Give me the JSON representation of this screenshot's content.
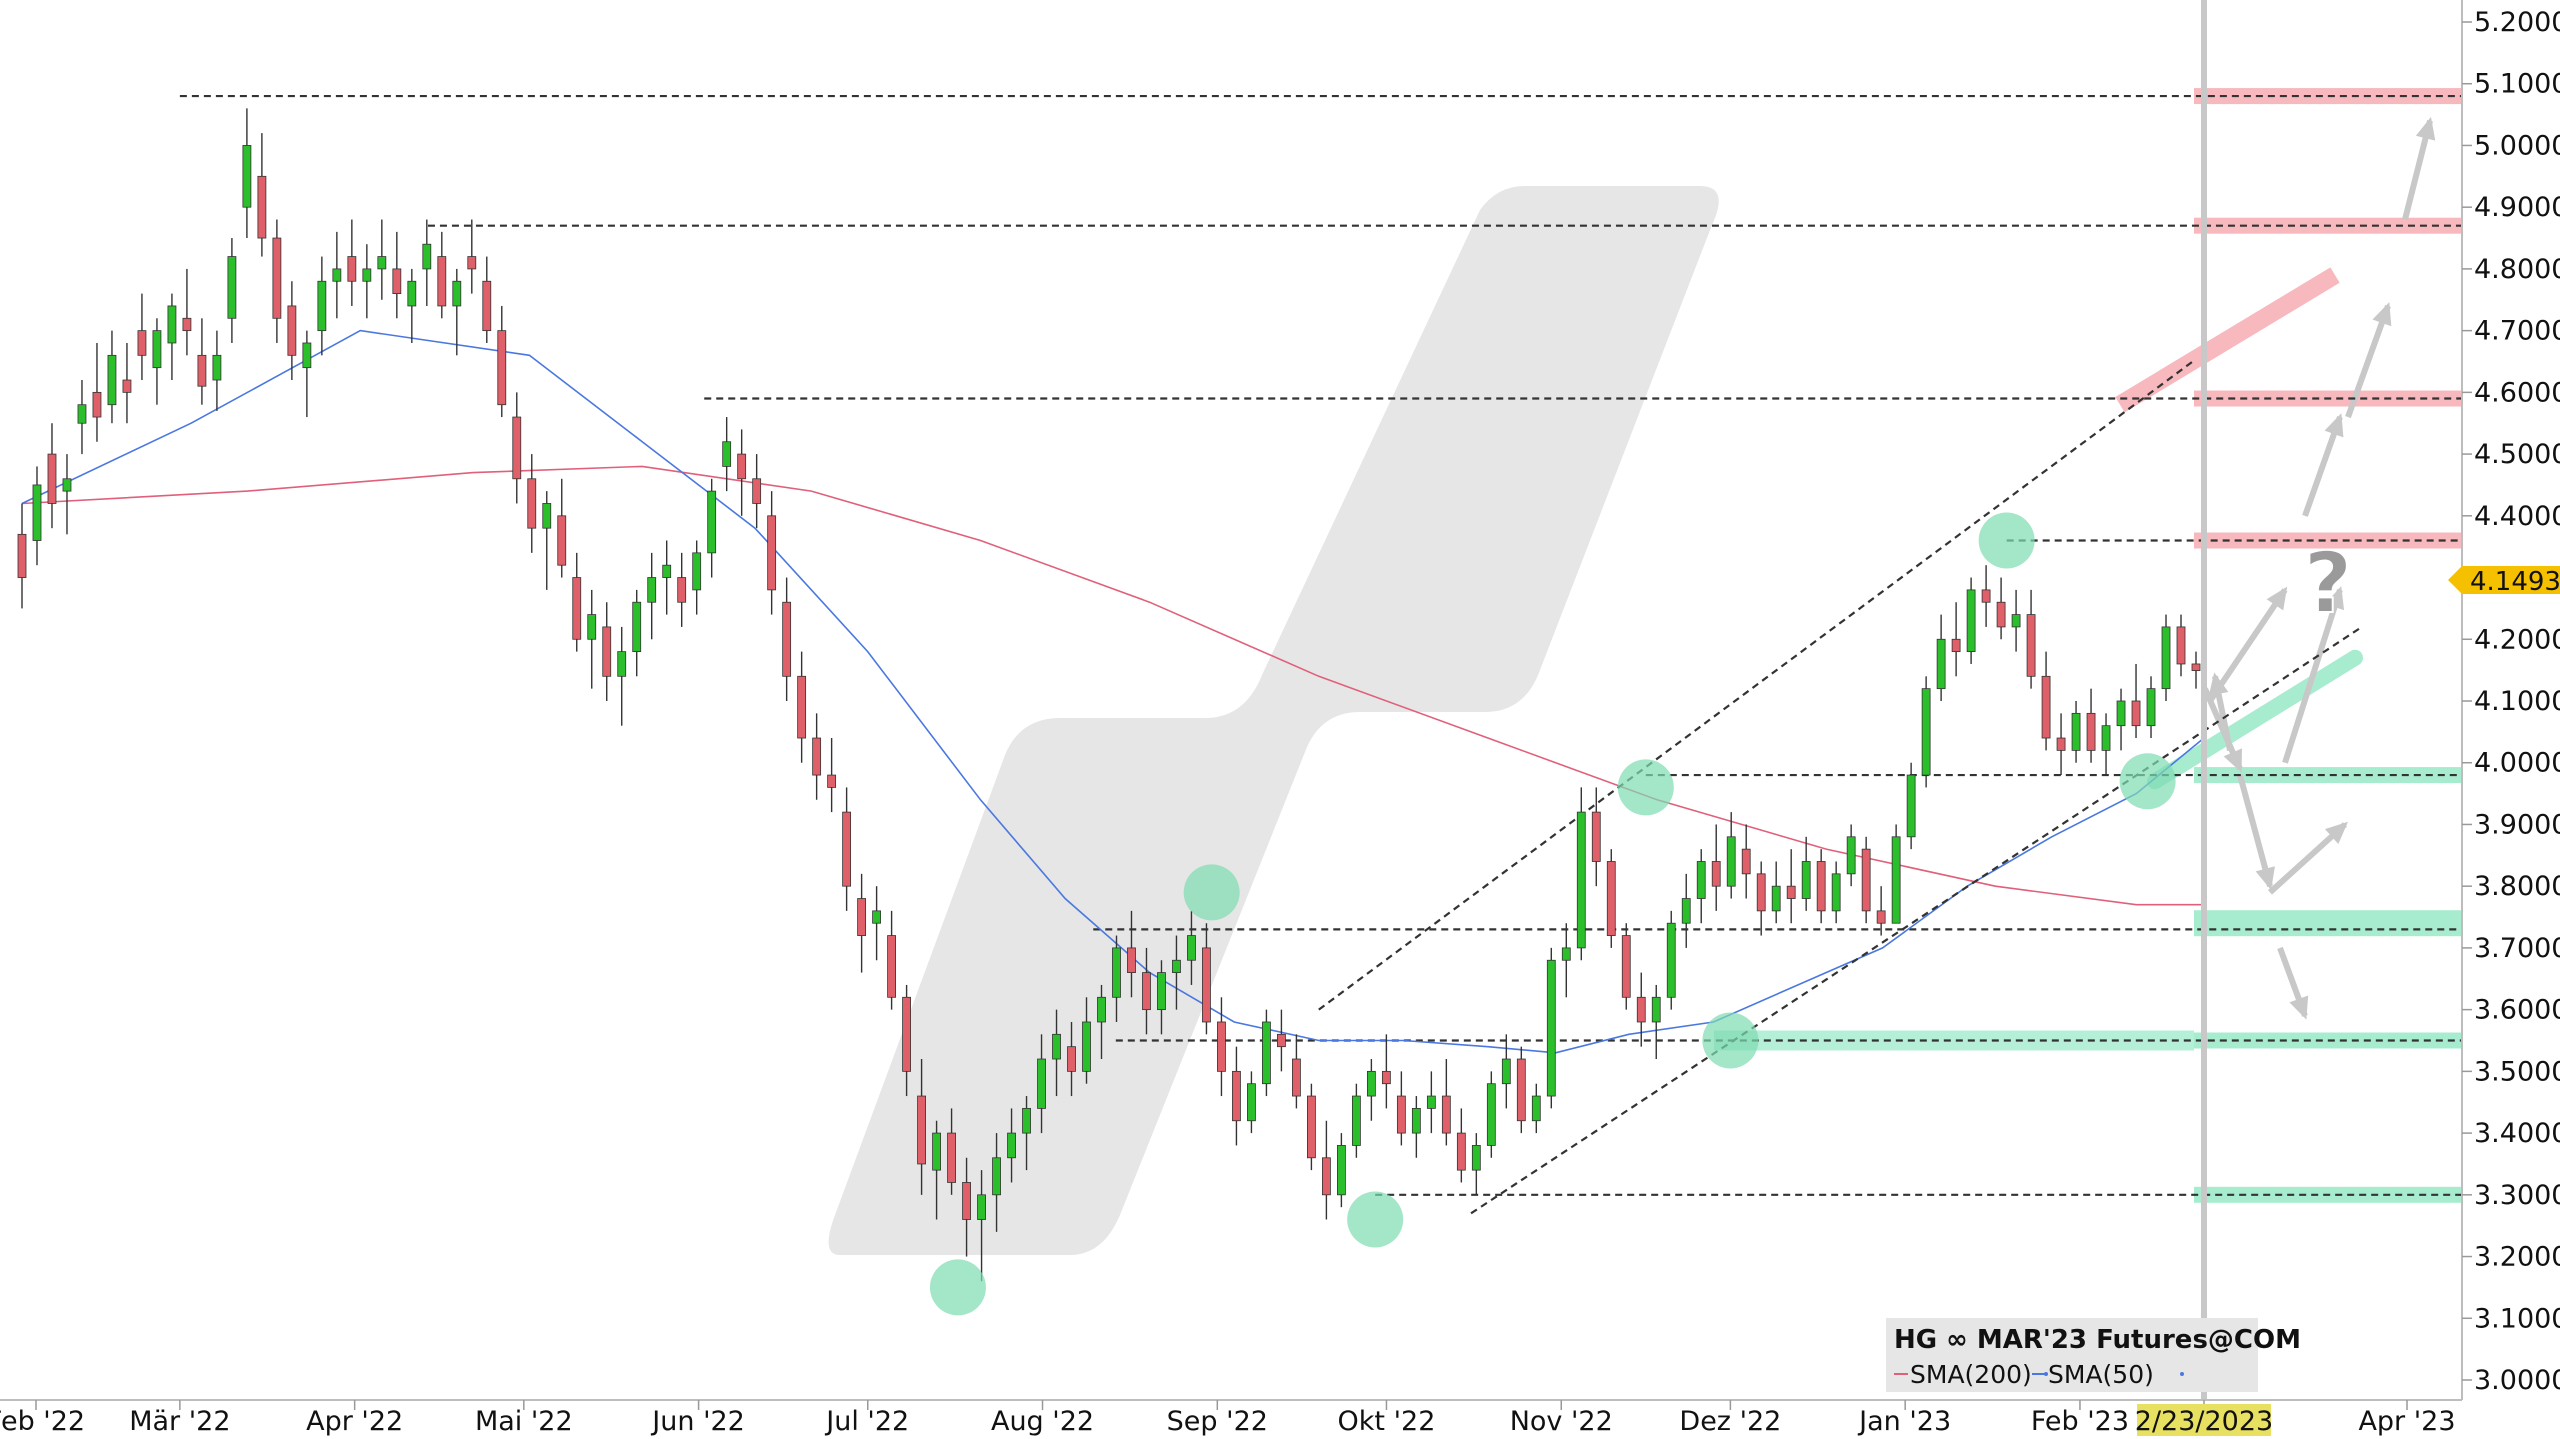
{
  "instrument": "HG ∞ MAR'23 Futures@COM",
  "legend": [
    {
      "label": "SMA(200)",
      "color": "#e0607a"
    },
    {
      "label": "SMA(50)",
      "color": "#4a78e0"
    }
  ],
  "current_price_label": "4.1493",
  "current_date_label": "2/23/2023",
  "question_mark": "?",
  "colors": {
    "up_candle": "#2cbf2c",
    "down_candle": "#e0606a",
    "resistance_zone": "#f7b8be",
    "support_zone": "#a8ecd0",
    "swing_circle": "#7ddbb0",
    "price_badge": "#f5c000",
    "date_badge": "#e8e060",
    "grey_arrow": "#c8c8c8"
  },
  "chart_data": {
    "type": "candlestick",
    "title": "HG ∞ MAR'23 Futures@COM",
    "ylim": [
      2.97,
      5.23
    ],
    "y_ticks": [
      "5.2000",
      "5.1000",
      "5.0000",
      "4.9000",
      "4.8000",
      "4.7000",
      "4.6000",
      "4.5000",
      "4.4000",
      "4.3000",
      "4.2000",
      "4.1000",
      "4.0000",
      "3.9000",
      "3.8000",
      "3.7000",
      "3.6000",
      "3.5000",
      "3.4000",
      "3.3000",
      "3.2000",
      "3.1000",
      "3.0000"
    ],
    "x_ticks": [
      {
        "label": "Feb '22",
        "day": 0
      },
      {
        "label": "Mär '22",
        "day": 28
      },
      {
        "label": "Apr '22",
        "day": 59
      },
      {
        "label": "Mai '22",
        "day": 89
      },
      {
        "label": "Jun '22",
        "day": 120
      },
      {
        "label": "Jul '22",
        "day": 150
      },
      {
        "label": "Aug '22",
        "day": 181
      },
      {
        "label": "Sep '22",
        "day": 212
      },
      {
        "label": "Okt '22",
        "day": 242
      },
      {
        "label": "Nov '22",
        "day": 273
      },
      {
        "label": "Dez '22",
        "day": 303
      },
      {
        "label": "Jan '23",
        "day": 334
      },
      {
        "label": "Feb '23",
        "day": 365
      },
      {
        "label": "2/23/2023",
        "day": 387
      },
      {
        "label": "Apr '23",
        "day": 424
      }
    ],
    "last_close": 4.1493,
    "horizontal_levels": [
      5.08,
      4.87,
      4.59,
      4.36,
      3.98,
      3.73,
      3.55,
      3.3
    ],
    "resistance_zones": [
      5.08,
      4.87,
      4.59,
      4.36
    ],
    "support_zones": [
      3.98,
      3.74,
      3.55,
      3.3
    ],
    "channel": {
      "upper": [
        {
          "day": 230,
          "value": 3.6
        },
        {
          "day": 385,
          "value": 4.65
        }
      ],
      "lower": [
        {
          "day": 257,
          "value": 3.27
        },
        {
          "day": 415,
          "value": 4.22
        }
      ]
    },
    "swing_points": [
      {
        "day": 166,
        "value": 3.15
      },
      {
        "day": 211,
        "value": 3.79
      },
      {
        "day": 240,
        "value": 3.26
      },
      {
        "day": 288,
        "value": 3.96
      },
      {
        "day": 303,
        "value": 3.55
      },
      {
        "day": 352,
        "value": 4.36
      },
      {
        "day": 377,
        "value": 3.97
      }
    ],
    "candles_ohlc": [
      [
        4.37,
        4.42,
        4.25,
        4.3
      ],
      [
        4.36,
        4.48,
        4.32,
        4.45
      ],
      [
        4.5,
        4.55,
        4.38,
        4.42
      ],
      [
        4.44,
        4.5,
        4.37,
        4.46
      ],
      [
        4.55,
        4.62,
        4.5,
        4.58
      ],
      [
        4.6,
        4.68,
        4.52,
        4.56
      ],
      [
        4.58,
        4.7,
        4.55,
        4.66
      ],
      [
        4.62,
        4.68,
        4.55,
        4.6
      ],
      [
        4.7,
        4.76,
        4.62,
        4.66
      ],
      [
        4.64,
        4.72,
        4.58,
        4.7
      ],
      [
        4.68,
        4.76,
        4.62,
        4.74
      ],
      [
        4.72,
        4.8,
        4.66,
        4.7
      ],
      [
        4.66,
        4.72,
        4.58,
        4.61
      ],
      [
        4.62,
        4.7,
        4.57,
        4.66
      ],
      [
        4.72,
        4.85,
        4.68,
        4.82
      ],
      [
        4.9,
        5.06,
        4.85,
        5.0
      ],
      [
        4.95,
        5.02,
        4.82,
        4.85
      ],
      [
        4.85,
        4.88,
        4.68,
        4.72
      ],
      [
        4.74,
        4.78,
        4.62,
        4.66
      ],
      [
        4.64,
        4.7,
        4.56,
        4.68
      ],
      [
        4.7,
        4.82,
        4.66,
        4.78
      ],
      [
        4.78,
        4.86,
        4.72,
        4.8
      ],
      [
        4.82,
        4.88,
        4.74,
        4.78
      ],
      [
        4.78,
        4.84,
        4.72,
        4.8
      ],
      [
        4.8,
        4.88,
        4.75,
        4.82
      ],
      [
        4.8,
        4.86,
        4.72,
        4.76
      ],
      [
        4.74,
        4.8,
        4.68,
        4.78
      ],
      [
        4.8,
        4.88,
        4.74,
        4.84
      ],
      [
        4.82,
        4.86,
        4.72,
        4.74
      ],
      [
        4.74,
        4.8,
        4.66,
        4.78
      ],
      [
        4.82,
        4.88,
        4.76,
        4.8
      ],
      [
        4.78,
        4.82,
        4.68,
        4.7
      ],
      [
        4.7,
        4.74,
        4.56,
        4.58
      ],
      [
        4.56,
        4.6,
        4.42,
        4.46
      ],
      [
        4.46,
        4.5,
        4.34,
        4.38
      ],
      [
        4.38,
        4.44,
        4.28,
        4.42
      ],
      [
        4.4,
        4.46,
        4.3,
        4.32
      ],
      [
        4.3,
        4.34,
        4.18,
        4.2
      ],
      [
        4.2,
        4.28,
        4.12,
        4.24
      ],
      [
        4.22,
        4.26,
        4.1,
        4.14
      ],
      [
        4.14,
        4.22,
        4.06,
        4.18
      ],
      [
        4.18,
        4.28,
        4.14,
        4.26
      ],
      [
        4.26,
        4.34,
        4.2,
        4.3
      ],
      [
        4.3,
        4.36,
        4.24,
        4.32
      ],
      [
        4.3,
        4.34,
        4.22,
        4.26
      ],
      [
        4.28,
        4.36,
        4.24,
        4.34
      ],
      [
        4.34,
        4.46,
        4.3,
        4.44
      ],
      [
        4.48,
        4.56,
        4.44,
        4.52
      ],
      [
        4.5,
        4.54,
        4.4,
        4.46
      ],
      [
        4.46,
        4.5,
        4.38,
        4.42
      ],
      [
        4.4,
        4.44,
        4.24,
        4.28
      ],
      [
        4.26,
        4.3,
        4.1,
        4.14
      ],
      [
        4.14,
        4.18,
        4.0,
        4.04
      ],
      [
        4.04,
        4.08,
        3.94,
        3.98
      ],
      [
        3.98,
        4.04,
        3.92,
        3.96
      ],
      [
        3.92,
        3.96,
        3.76,
        3.8
      ],
      [
        3.78,
        3.82,
        3.66,
        3.72
      ],
      [
        3.74,
        3.8,
        3.68,
        3.76
      ],
      [
        3.72,
        3.76,
        3.6,
        3.62
      ],
      [
        3.62,
        3.64,
        3.46,
        3.5
      ],
      [
        3.46,
        3.52,
        3.3,
        3.35
      ],
      [
        3.34,
        3.42,
        3.26,
        3.4
      ],
      [
        3.4,
        3.44,
        3.3,
        3.32
      ],
      [
        3.32,
        3.36,
        3.2,
        3.26
      ],
      [
        3.26,
        3.34,
        3.16,
        3.3
      ],
      [
        3.3,
        3.4,
        3.24,
        3.36
      ],
      [
        3.36,
        3.44,
        3.32,
        3.4
      ],
      [
        3.4,
        3.46,
        3.34,
        3.44
      ],
      [
        3.44,
        3.56,
        3.4,
        3.52
      ],
      [
        3.52,
        3.6,
        3.46,
        3.56
      ],
      [
        3.54,
        3.58,
        3.46,
        3.5
      ],
      [
        3.5,
        3.62,
        3.48,
        3.58
      ],
      [
        3.58,
        3.64,
        3.52,
        3.62
      ],
      [
        3.62,
        3.72,
        3.58,
        3.7
      ],
      [
        3.7,
        3.76,
        3.62,
        3.66
      ],
      [
        3.66,
        3.7,
        3.56,
        3.6
      ],
      [
        3.6,
        3.68,
        3.56,
        3.66
      ],
      [
        3.66,
        3.72,
        3.6,
        3.68
      ],
      [
        3.68,
        3.76,
        3.64,
        3.72
      ],
      [
        3.7,
        3.74,
        3.56,
        3.58
      ],
      [
        3.58,
        3.62,
        3.46,
        3.5
      ],
      [
        3.5,
        3.54,
        3.38,
        3.42
      ],
      [
        3.42,
        3.5,
        3.4,
        3.48
      ],
      [
        3.48,
        3.6,
        3.46,
        3.58
      ],
      [
        3.56,
        3.6,
        3.5,
        3.54
      ],
      [
        3.52,
        3.56,
        3.44,
        3.46
      ],
      [
        3.46,
        3.48,
        3.34,
        3.36
      ],
      [
        3.36,
        3.42,
        3.26,
        3.3
      ],
      [
        3.3,
        3.4,
        3.28,
        3.38
      ],
      [
        3.38,
        3.48,
        3.36,
        3.46
      ],
      [
        3.46,
        3.52,
        3.42,
        3.5
      ],
      [
        3.5,
        3.56,
        3.44,
        3.48
      ],
      [
        3.46,
        3.5,
        3.38,
        3.4
      ],
      [
        3.4,
        3.46,
        3.36,
        3.44
      ],
      [
        3.44,
        3.5,
        3.4,
        3.46
      ],
      [
        3.46,
        3.52,
        3.38,
        3.4
      ],
      [
        3.4,
        3.44,
        3.32,
        3.34
      ],
      [
        3.34,
        3.4,
        3.3,
        3.38
      ],
      [
        3.38,
        3.5,
        3.36,
        3.48
      ],
      [
        3.48,
        3.56,
        3.44,
        3.52
      ],
      [
        3.52,
        3.54,
        3.4,
        3.42
      ],
      [
        3.42,
        3.48,
        3.4,
        3.46
      ],
      [
        3.46,
        3.7,
        3.44,
        3.68
      ],
      [
        3.68,
        3.74,
        3.62,
        3.7
      ],
      [
        3.7,
        3.96,
        3.68,
        3.92
      ],
      [
        3.92,
        3.96,
        3.8,
        3.84
      ],
      [
        3.84,
        3.86,
        3.7,
        3.72
      ],
      [
        3.72,
        3.74,
        3.6,
        3.62
      ],
      [
        3.62,
        3.66,
        3.54,
        3.58
      ],
      [
        3.58,
        3.64,
        3.52,
        3.62
      ],
      [
        3.62,
        3.76,
        3.6,
        3.74
      ],
      [
        3.74,
        3.82,
        3.7,
        3.78
      ],
      [
        3.78,
        3.86,
        3.74,
        3.84
      ],
      [
        3.84,
        3.9,
        3.76,
        3.8
      ],
      [
        3.8,
        3.92,
        3.78,
        3.88
      ],
      [
        3.86,
        3.9,
        3.78,
        3.82
      ],
      [
        3.82,
        3.84,
        3.72,
        3.76
      ],
      [
        3.76,
        3.84,
        3.74,
        3.8
      ],
      [
        3.8,
        3.86,
        3.74,
        3.78
      ],
      [
        3.78,
        3.88,
        3.76,
        3.84
      ],
      [
        3.84,
        3.86,
        3.74,
        3.76
      ],
      [
        3.76,
        3.84,
        3.74,
        3.82
      ],
      [
        3.82,
        3.9,
        3.8,
        3.88
      ],
      [
        3.86,
        3.88,
        3.74,
        3.76
      ],
      [
        3.76,
        3.8,
        3.72,
        3.74
      ],
      [
        3.74,
        3.9,
        3.74,
        3.88
      ],
      [
        3.88,
        4.0,
        3.86,
        3.98
      ],
      [
        3.98,
        4.14,
        3.96,
        4.12
      ],
      [
        4.12,
        4.24,
        4.1,
        4.2
      ],
      [
        4.2,
        4.26,
        4.14,
        4.18
      ],
      [
        4.18,
        4.3,
        4.16,
        4.28
      ],
      [
        4.28,
        4.32,
        4.22,
        4.26
      ],
      [
        4.26,
        4.3,
        4.2,
        4.22
      ],
      [
        4.22,
        4.28,
        4.18,
        4.24
      ],
      [
        4.24,
        4.28,
        4.12,
        4.14
      ],
      [
        4.14,
        4.18,
        4.02,
        4.04
      ],
      [
        4.04,
        4.08,
        3.98,
        4.02
      ],
      [
        4.02,
        4.1,
        4.0,
        4.08
      ],
      [
        4.08,
        4.12,
        4.0,
        4.02
      ],
      [
        4.02,
        4.08,
        3.98,
        4.06
      ],
      [
        4.06,
        4.12,
        4.02,
        4.1
      ],
      [
        4.1,
        4.16,
        4.04,
        4.06
      ],
      [
        4.06,
        4.14,
        4.04,
        4.12
      ],
      [
        4.12,
        4.24,
        4.1,
        4.22
      ],
      [
        4.22,
        4.24,
        4.14,
        4.16
      ],
      [
        4.16,
        4.18,
        4.12,
        4.1493
      ]
    ],
    "sma50": [
      [
        0,
        4.42
      ],
      [
        30,
        4.55
      ],
      [
        60,
        4.7
      ],
      [
        90,
        4.66
      ],
      [
        110,
        4.52
      ],
      [
        130,
        4.38
      ],
      [
        150,
        4.18
      ],
      [
        170,
        3.94
      ],
      [
        185,
        3.78
      ],
      [
        200,
        3.66
      ],
      [
        215,
        3.58
      ],
      [
        230,
        3.55
      ],
      [
        245,
        3.55
      ],
      [
        260,
        3.54
      ],
      [
        272,
        3.53
      ],
      [
        285,
        3.56
      ],
      [
        300,
        3.58
      ],
      [
        315,
        3.64
      ],
      [
        330,
        3.7
      ],
      [
        345,
        3.8
      ],
      [
        360,
        3.88
      ],
      [
        375,
        3.95
      ],
      [
        387,
        4.04
      ]
    ],
    "sma200": [
      [
        0,
        4.42
      ],
      [
        40,
        4.44
      ],
      [
        80,
        4.47
      ],
      [
        110,
        4.48
      ],
      [
        140,
        4.44
      ],
      [
        170,
        4.36
      ],
      [
        200,
        4.26
      ],
      [
        230,
        4.14
      ],
      [
        260,
        4.04
      ],
      [
        290,
        3.94
      ],
      [
        320,
        3.86
      ],
      [
        350,
        3.8
      ],
      [
        375,
        3.77
      ],
      [
        387,
        3.77
      ]
    ]
  }
}
